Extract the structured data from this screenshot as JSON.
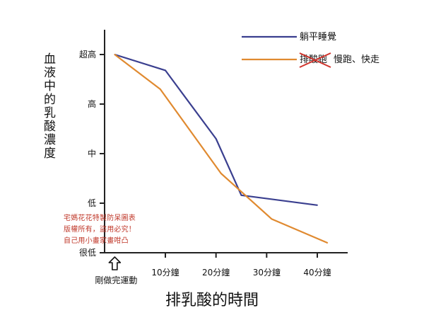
{
  "chart_data": {
    "type": "line",
    "xlabel": "排乳酸的時間",
    "ylabel": "血液中的乳酸濃度",
    "x_ticks": [
      {
        "label": "剛做完運動",
        "x": 0
      },
      {
        "label": "10分鐘",
        "x": 10
      },
      {
        "label": "20分鐘",
        "x": 20
      },
      {
        "label": "30分鐘",
        "x": 30
      },
      {
        "label": "40分鐘",
        "x": 40
      }
    ],
    "y_ticks": [
      {
        "label": "超高",
        "y": 4
      },
      {
        "label": "高",
        "y": 3
      },
      {
        "label": "中",
        "y": 2
      },
      {
        "label": "低",
        "y": 1
      },
      {
        "label": "很低",
        "y": 0
      }
    ],
    "xlim": [
      -2,
      46
    ],
    "ylim": [
      0,
      4.5
    ],
    "series": [
      {
        "name": "躺平睡覺",
        "color": "#3a3f8f",
        "points": [
          [
            0,
            4.0
          ],
          [
            10,
            3.68
          ],
          [
            20,
            2.3
          ],
          [
            25,
            1.16
          ],
          [
            40,
            0.96
          ]
        ]
      },
      {
        "name": "慢跑、快走",
        "struck_name": "排酸跑",
        "color": "#e08a30",
        "points": [
          [
            0,
            4.0
          ],
          [
            9,
            3.3
          ],
          [
            21,
            1.6
          ],
          [
            31,
            0.68
          ],
          [
            42,
            0.2
          ]
        ]
      }
    ],
    "legend_position": "top-right",
    "grid": false
  },
  "watermark": {
    "lines": [
      "宅媽花花特製防呆圖表",
      "版權所有，盜用必究！",
      "自己用小畫家畫咁凸"
    ],
    "color": "#c0392b"
  },
  "arrow_icon": "up-arrow-icon"
}
